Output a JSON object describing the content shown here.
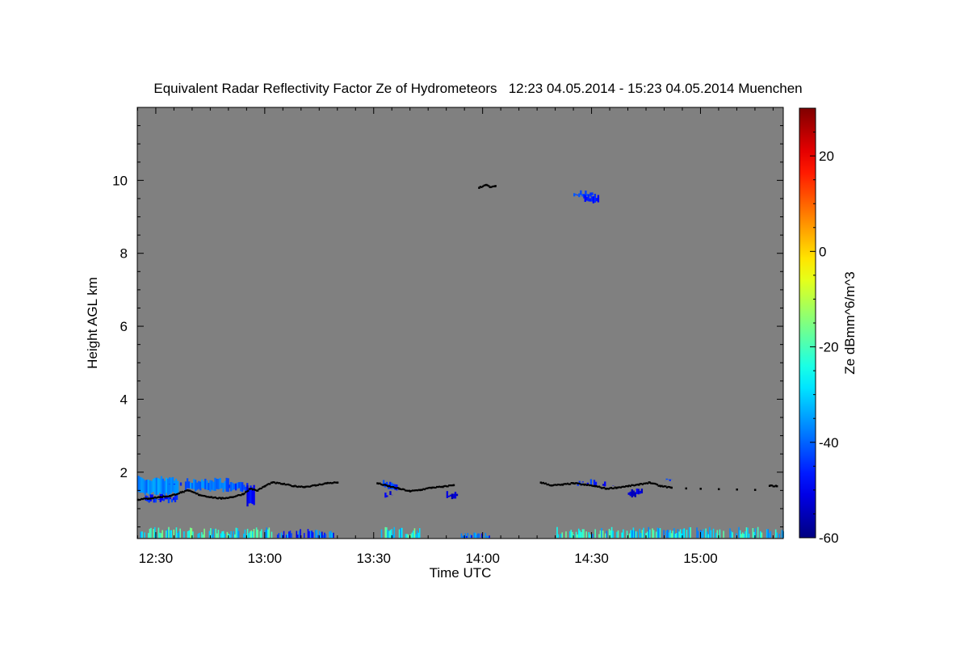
{
  "chart_data": {
    "type": "heatmap",
    "title": "Equivalent Radar Reflectivity Factor Ze of Hydrometeors   12:23 04.05.2014 - 15:23 04.05.2014 Muenchen",
    "xlabel": "Time UTC",
    "ylabel": "Height AGL km",
    "colorbar_label": "Ze dBmm^6/m^3",
    "xlim_minutes_after_1200": [
      24.9,
      202.8
    ],
    "ylim_km": [
      0.18,
      12.0
    ],
    "clim_dbz": [
      -60,
      30
    ],
    "background_color": "#808080",
    "x_ticks": [
      {
        "minutes": 30,
        "label": "12:30"
      },
      {
        "minutes": 60,
        "label": "13:00"
      },
      {
        "minutes": 90,
        "label": "13:30"
      },
      {
        "minutes": 120,
        "label": "14:00"
      },
      {
        "minutes": 150,
        "label": "14:30"
      },
      {
        "minutes": 180,
        "label": "15:00"
      }
    ],
    "y_ticks": [
      {
        "value": 2,
        "label": "2"
      },
      {
        "value": 4,
        "label": "4"
      },
      {
        "value": 6,
        "label": "6"
      },
      {
        "value": 8,
        "label": "8"
      },
      {
        "value": 10,
        "label": "10"
      }
    ],
    "colorbar_ticks": [
      {
        "value": 20,
        "label": "20"
      },
      {
        "value": 0,
        "label": "0"
      },
      {
        "value": -20,
        "label": "-20"
      },
      {
        "value": -40,
        "label": "-40"
      },
      {
        "value": -60,
        "label": "-60"
      }
    ],
    "echo_regions": [
      {
        "t0": 25,
        "t1": 36,
        "h0": 1.35,
        "h1": 1.9,
        "ze": -37
      },
      {
        "t0": 27,
        "t1": 36,
        "h0": 1.15,
        "h1": 1.4,
        "ze": -46
      },
      {
        "t0": 38,
        "t1": 50,
        "h0": 1.45,
        "h1": 1.85,
        "ze": -39
      },
      {
        "t0": 50,
        "t1": 55,
        "h0": 1.45,
        "h1": 1.75,
        "ze": -42
      },
      {
        "t0": 55,
        "t1": 57,
        "h0": 1.05,
        "h1": 1.7,
        "ze": -50
      },
      {
        "t0": 33.5,
        "t1": 37,
        "h0": 1.6,
        "h1": 1.75,
        "ze": -48
      },
      {
        "t0": 92.5,
        "t1": 96.5,
        "h0": 1.5,
        "h1": 1.8,
        "ze": -44
      },
      {
        "t0": 93,
        "t1": 95,
        "h0": 1.3,
        "h1": 1.5,
        "ze": -50
      },
      {
        "t0": 110,
        "t1": 113,
        "h0": 1.25,
        "h1": 1.5,
        "ze": -53
      },
      {
        "t0": 146,
        "t1": 151,
        "h0": 1.62,
        "h1": 1.82,
        "ze": -46
      },
      {
        "t0": 153,
        "t1": 156,
        "h0": 1.6,
        "h1": 1.75,
        "ze": -50
      },
      {
        "t0": 160,
        "t1": 164,
        "h0": 1.3,
        "h1": 1.55,
        "ze": -52
      },
      {
        "t0": 170,
        "t1": 172,
        "h0": 1.7,
        "h1": 1.85,
        "ze": -44
      },
      {
        "t0": 145,
        "t1": 150,
        "h0": 9.5,
        "h1": 9.75,
        "ze": -44
      },
      {
        "t0": 148,
        "t1": 152,
        "h0": 9.35,
        "h1": 9.65,
        "ze": -46
      }
    ],
    "clutter_regions": [
      {
        "t0": 25,
        "t1": 62,
        "h0": 0.2,
        "h1": 0.5,
        "ze": -30
      },
      {
        "t0": 63,
        "t1": 80,
        "h0": 0.2,
        "h1": 0.45,
        "ze": -45
      },
      {
        "t0": 92,
        "t1": 104,
        "h0": 0.2,
        "h1": 0.5,
        "ze": -30
      },
      {
        "t0": 114,
        "t1": 122,
        "h0": 0.2,
        "h1": 0.35,
        "ze": -45
      },
      {
        "t0": 140,
        "t1": 202.8,
        "h0": 0.2,
        "h1": 0.5,
        "ze": -32
      }
    ],
    "cloud_base": [
      [
        25,
        1.25
      ],
      [
        28,
        1.28
      ],
      [
        31,
        1.32
      ],
      [
        34,
        1.35
      ],
      [
        37,
        1.45
      ],
      [
        39,
        1.5
      ],
      [
        42,
        1.38
      ],
      [
        45,
        1.32
      ],
      [
        48,
        1.28
      ],
      [
        51,
        1.32
      ],
      [
        54,
        1.4
      ],
      [
        56,
        1.55
      ],
      [
        58,
        1.5
      ],
      [
        60,
        1.62
      ],
      [
        62,
        1.72
      ],
      [
        65,
        1.68
      ],
      [
        68,
        1.62
      ],
      [
        71,
        1.6
      ],
      [
        74,
        1.64
      ],
      [
        77,
        1.7
      ],
      [
        80,
        1.72
      ],
      [
        91,
        1.7
      ],
      [
        94,
        1.62
      ],
      [
        97,
        1.55
      ],
      [
        100,
        1.48
      ],
      [
        103,
        1.52
      ],
      [
        106,
        1.58
      ],
      [
        109,
        1.6
      ],
      [
        112,
        1.65
      ],
      [
        136,
        1.72
      ],
      [
        139,
        1.64
      ],
      [
        142,
        1.66
      ],
      [
        145,
        1.7
      ],
      [
        148,
        1.66
      ],
      [
        151,
        1.62
      ],
      [
        154,
        1.55
      ],
      [
        157,
        1.58
      ],
      [
        160,
        1.62
      ],
      [
        163,
        1.66
      ],
      [
        166,
        1.72
      ],
      [
        169,
        1.62
      ],
      [
        172,
        1.58
      ],
      [
        176,
        1.56
      ],
      [
        180,
        1.55
      ],
      [
        185,
        1.54
      ],
      [
        190,
        1.53
      ],
      [
        195,
        1.52
      ],
      [
        199,
        1.63
      ],
      [
        201,
        1.62
      ],
      [
        119,
        9.8
      ],
      [
        121,
        9.88
      ],
      [
        122,
        9.82
      ],
      [
        123.5,
        9.85
      ]
    ]
  }
}
